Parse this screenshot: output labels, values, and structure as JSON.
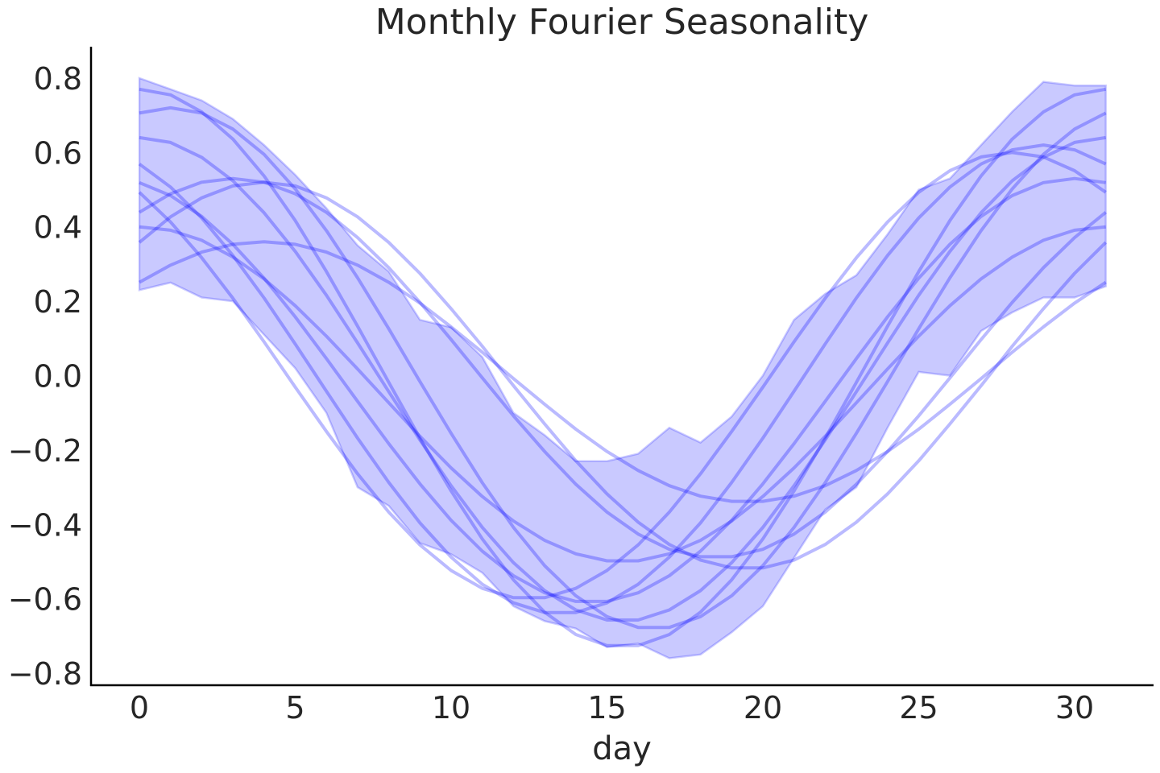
{
  "chart_data": {
    "type": "line",
    "title": "Monthly Fourier Seasonality",
    "xlabel": "day",
    "ylabel": "",
    "xlim": [
      -1.5,
      32.5
    ],
    "ylim": [
      -0.84,
      0.88
    ],
    "xticks": [
      0,
      5,
      10,
      15,
      20,
      25,
      30
    ],
    "xtick_labels": [
      "0",
      "5",
      "10",
      "15",
      "20",
      "25",
      "30"
    ],
    "yticks": [
      -0.8,
      -0.6,
      -0.4,
      -0.2,
      0.0,
      0.2,
      0.4,
      0.6,
      0.8
    ],
    "ytick_labels": [
      "−0.8",
      "−0.6",
      "−0.4",
      "−0.2",
      "0.0",
      "0.2",
      "0.4",
      "0.6",
      "0.8"
    ],
    "grid": false,
    "colors": {
      "line": "#0000ff",
      "band": "#0000ff",
      "text": "#262626"
    },
    "x": [
      0,
      1,
      2,
      3,
      4,
      5,
      6,
      7,
      8,
      9,
      10,
      11,
      12,
      13,
      14,
      15,
      16,
      17,
      18,
      19,
      20,
      21,
      22,
      23,
      24,
      25,
      26,
      27,
      28,
      29,
      30,
      31
    ],
    "band": {
      "upper": [
        0.8,
        0.77,
        0.74,
        0.69,
        0.62,
        0.54,
        0.45,
        0.35,
        0.28,
        0.15,
        0.13,
        0.05,
        -0.1,
        -0.16,
        -0.23,
        -0.23,
        -0.21,
        -0.14,
        -0.18,
        -0.11,
        0.0,
        0.15,
        0.22,
        0.27,
        0.38,
        0.5,
        0.53,
        0.62,
        0.71,
        0.79,
        0.78,
        0.78
      ],
      "lower": [
        0.23,
        0.25,
        0.21,
        0.2,
        0.11,
        0.02,
        -0.1,
        -0.3,
        -0.35,
        -0.45,
        -0.48,
        -0.53,
        -0.62,
        -0.66,
        -0.68,
        -0.73,
        -0.72,
        -0.76,
        -0.75,
        -0.69,
        -0.62,
        -0.49,
        -0.36,
        -0.3,
        -0.14,
        0.01,
        0.0,
        0.12,
        0.17,
        0.21,
        0.21,
        0.24
      ]
    },
    "series": [
      {
        "values": [
          0.77,
          0.755,
          0.709,
          0.636,
          0.537,
          0.417,
          0.28,
          0.133,
          -0.018,
          -0.168,
          -0.31,
          -0.439,
          -0.549,
          -0.636,
          -0.696,
          -0.726,
          -0.726,
          -0.696,
          -0.636,
          -0.549,
          -0.439,
          -0.31,
          -0.168,
          -0.018,
          0.133,
          0.28,
          0.417,
          0.537,
          0.636,
          0.709,
          0.755,
          0.77
        ]
      },
      {
        "values": [
          0.706,
          0.72,
          0.706,
          0.663,
          0.595,
          0.502,
          0.39,
          0.263,
          0.126,
          -0.016,
          -0.155,
          -0.288,
          -0.408,
          -0.511,
          -0.592,
          -0.648,
          -0.677,
          -0.677,
          -0.648,
          -0.592,
          -0.511,
          -0.408,
          -0.288,
          -0.155,
          -0.016,
          0.126,
          0.263,
          0.39,
          0.502,
          0.595,
          0.663,
          0.706
        ]
      },
      {
        "values": [
          0.64,
          0.627,
          0.587,
          0.524,
          0.438,
          0.334,
          0.216,
          0.088,
          -0.043,
          -0.173,
          -0.296,
          -0.408,
          -0.503,
          -0.578,
          -0.63,
          -0.657,
          -0.657,
          -0.63,
          -0.578,
          -0.503,
          -0.408,
          -0.296,
          -0.173,
          -0.043,
          0.088,
          0.216,
          0.334,
          0.438,
          0.524,
          0.587,
          0.627,
          0.64
        ]
      },
      {
        "values": [
          0.569,
          0.507,
          0.424,
          0.323,
          0.209,
          0.085,
          -0.042,
          -0.168,
          -0.287,
          -0.396,
          -0.488,
          -0.561,
          -0.611,
          -0.637,
          -0.637,
          -0.611,
          -0.561,
          -0.488,
          -0.396,
          -0.287,
          -0.168,
          -0.042,
          0.085,
          0.209,
          0.323,
          0.424,
          0.507,
          0.569,
          0.607,
          0.62,
          0.607,
          0.569
        ]
      },
      {
        "values": [
          0.493,
          0.413,
          0.317,
          0.208,
          0.091,
          -0.031,
          -0.15,
          -0.264,
          -0.367,
          -0.455,
          -0.524,
          -0.572,
          -0.597,
          -0.597,
          -0.572,
          -0.524,
          -0.455,
          -0.367,
          -0.264,
          -0.15,
          -0.031,
          0.091,
          0.208,
          0.317,
          0.413,
          0.493,
          0.551,
          0.588,
          0.6,
          0.588,
          0.551,
          0.493
        ]
      },
      {
        "values": [
          0.439,
          0.489,
          0.52,
          0.53,
          0.52,
          0.489,
          0.439,
          0.371,
          0.29,
          0.197,
          0.097,
          -0.006,
          -0.108,
          -0.204,
          -0.292,
          -0.367,
          -0.426,
          -0.467,
          -0.487,
          -0.487,
          -0.467,
          -0.426,
          -0.367,
          -0.292,
          -0.204,
          -0.108,
          -0.006,
          0.097,
          0.197,
          0.29,
          0.371,
          0.439
        ]
      },
      {
        "values": [
          0.4,
          0.391,
          0.364,
          0.319,
          0.26,
          0.188,
          0.106,
          0.018,
          -0.073,
          -0.163,
          -0.248,
          -0.325,
          -0.391,
          -0.443,
          -0.479,
          -0.498,
          -0.498,
          -0.479,
          -0.443,
          -0.391,
          -0.325,
          -0.248,
          -0.163,
          -0.073,
          0.018,
          0.106,
          0.188,
          0.26,
          0.319,
          0.364,
          0.391,
          0.4
        ]
      },
      {
        "values": [
          0.358,
          0.427,
          0.478,
          0.51,
          0.52,
          0.51,
          0.478,
          0.427,
          0.358,
          0.275,
          0.18,
          0.079,
          -0.027,
          -0.13,
          -0.229,
          -0.318,
          -0.394,
          -0.454,
          -0.496,
          -0.517,
          -0.517,
          -0.496,
          -0.454,
          -0.394,
          -0.318,
          -0.229,
          -0.13,
          -0.027,
          0.079,
          0.18,
          0.275,
          0.358
        ]
      },
      {
        "values": [
          0.251,
          0.297,
          0.332,
          0.353,
          0.36,
          0.353,
          0.332,
          0.297,
          0.251,
          0.195,
          0.131,
          0.063,
          -0.008,
          -0.077,
          -0.144,
          -0.204,
          -0.255,
          -0.296,
          -0.324,
          -0.338,
          -0.338,
          -0.324,
          -0.296,
          -0.255,
          -0.204,
          -0.144,
          -0.077,
          -0.008,
          0.063,
          0.131,
          0.195,
          0.251
        ]
      },
      {
        "values": [
          0.519,
          0.484,
          0.428,
          0.353,
          0.262,
          0.158,
          0.046,
          -0.069,
          -0.183,
          -0.291,
          -0.389,
          -0.472,
          -0.538,
          -0.584,
          -0.607,
          -0.607,
          -0.584,
          -0.538,
          -0.472,
          -0.389,
          -0.291,
          -0.183,
          -0.069,
          0.046,
          0.158,
          0.262,
          0.353,
          0.428,
          0.484,
          0.519,
          0.53,
          0.519
        ]
      }
    ]
  }
}
